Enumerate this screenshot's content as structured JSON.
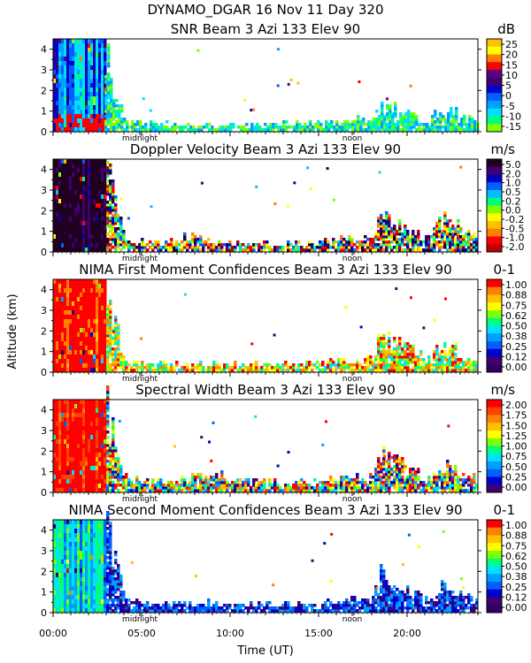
{
  "figure": {
    "title": "DYNAMO_DGAR  16 Nov 11 Day 320",
    "xlabel": "Time (UT)",
    "ylabel": "Altitude (km)",
    "midnight_label": "midnight",
    "noon_label": "noon"
  },
  "chart_data": [
    {
      "type": "heatmap",
      "title": "SNR Beam 3 Azi 133 Elev 90",
      "unit": "dB",
      "ylim": [
        0,
        4.5
      ],
      "xlim": [
        0,
        24
      ],
      "yticks": [
        0,
        1,
        2,
        3,
        4
      ],
      "colorbar_ticks": [
        "25",
        "20",
        "15",
        "10",
        "5",
        "0",
        "-5",
        "-10",
        "-15"
      ],
      "colorbar_colors": [
        "#ffc000",
        "#ffff00",
        "#ff8000",
        "#ff0000",
        "#5a0080",
        "#400070",
        "#0000d0",
        "#0060ff",
        "#00a0ff",
        "#00e0ff",
        "#00ff80",
        "#80ff00"
      ],
      "early_block_end_hour": 2.9,
      "echo_top_profile": {
        "x": [
          0,
          3,
          4,
          6,
          9,
          12,
          15,
          18,
          18.5,
          21,
          22,
          24
        ],
        "y": [
          4.5,
          4.5,
          0.6,
          0.5,
          0.45,
          0.5,
          0.55,
          0.8,
          1.6,
          0.7,
          1.3,
          0.6
        ]
      }
    },
    {
      "type": "heatmap",
      "title": "Doppler Velocity Beam 3 Azi 133 Elev 90",
      "unit": "m/s",
      "ylim": [
        0,
        4.5
      ],
      "xlim": [
        0,
        24
      ],
      "yticks": [
        0,
        1,
        2,
        3,
        4
      ],
      "colorbar_ticks": [
        "5.0",
        "2.0",
        "1.0",
        "0.5",
        "0.2",
        "0.0",
        "-0.2",
        "-0.5",
        "-1.0",
        "-2.0"
      ],
      "colorbar_colors": [
        "#200020",
        "#400070",
        "#0000c0",
        "#0060ff",
        "#00c0ff",
        "#00ff80",
        "#80ff00",
        "#ffff00",
        "#ffc000",
        "#ff8000",
        "#ff0000",
        "#c00000"
      ],
      "early_block_end_hour": 3.0,
      "echo_top_profile": {
        "x": [
          0,
          3,
          4,
          6,
          8,
          9,
          12,
          15,
          18,
          18.5,
          21,
          22,
          24
        ],
        "y": [
          4.5,
          4.5,
          0.7,
          0.6,
          0.9,
          0.5,
          0.55,
          0.6,
          0.9,
          2.0,
          0.8,
          1.8,
          0.7
        ]
      }
    },
    {
      "type": "heatmap",
      "title": "NIMA First Moment Confidences Beam 3 Azi 133 Elev 90",
      "unit": "0-1",
      "ylim": [
        0,
        4.5
      ],
      "xlim": [
        0,
        24
      ],
      "yticks": [
        0,
        1,
        2,
        3,
        4
      ],
      "colorbar_ticks": [
        "1.00",
        "0.88",
        "0.75",
        "0.62",
        "0.50",
        "0.38",
        "0.25",
        "0.12",
        "0.00"
      ],
      "colorbar_colors": [
        "#ff0000",
        "#ff8000",
        "#ffc000",
        "#ffff00",
        "#80ff00",
        "#00ff80",
        "#00e0ff",
        "#00a0ff",
        "#0060ff",
        "#0000d0",
        "#400070",
        "#300060"
      ],
      "early_block_end_hour": 3.0,
      "echo_top_profile": {
        "x": [
          0,
          3,
          4,
          6,
          9,
          12,
          15,
          18,
          18.5,
          21,
          22,
          24
        ],
        "y": [
          4.5,
          4.5,
          0.6,
          0.55,
          0.5,
          0.5,
          0.6,
          0.8,
          2.2,
          0.8,
          1.4,
          0.7
        ]
      }
    },
    {
      "type": "heatmap",
      "title": "Spectral Width Beam 3 Azi 133 Elev 90",
      "unit": "m/s",
      "ylim": [
        0,
        4.5
      ],
      "xlim": [
        0,
        24
      ],
      "yticks": [
        0,
        1,
        2,
        3,
        4
      ],
      "colorbar_ticks": [
        "2.00",
        "1.75",
        "1.50",
        "1.25",
        "1.00",
        "0.75",
        "0.50",
        "0.25",
        "0.00"
      ],
      "colorbar_colors": [
        "#ff0000",
        "#ff4000",
        "#ff8000",
        "#ffc000",
        "#ffff00",
        "#80ff00",
        "#00ff80",
        "#00e0ff",
        "#00a0ff",
        "#0060ff",
        "#0000d0",
        "#400070"
      ],
      "early_block_end_hour": 3.0,
      "echo_top_profile": {
        "x": [
          0,
          3,
          4,
          6,
          9,
          12,
          15,
          18,
          18.5,
          21,
          22,
          24
        ],
        "y": [
          4.5,
          4.5,
          0.9,
          0.6,
          1.0,
          0.6,
          0.7,
          0.9,
          2.2,
          0.8,
          1.6,
          0.7
        ]
      }
    },
    {
      "type": "heatmap",
      "title": "NIMA Second Moment Confidences Beam 3 Azi 133 Elev 90",
      "unit": "0-1",
      "ylim": [
        0,
        4.5
      ],
      "xlim": [
        0,
        24
      ],
      "yticks": [
        0,
        1,
        2,
        3,
        4
      ],
      "colorbar_ticks": [
        "1.00",
        "0.88",
        "0.75",
        "0.62",
        "0.50",
        "0.38",
        "0.25",
        "0.12",
        "0.00"
      ],
      "colorbar_colors": [
        "#ff0000",
        "#ff8000",
        "#ffc000",
        "#ffff00",
        "#80ff00",
        "#00ff80",
        "#00e0ff",
        "#00a0ff",
        "#0060ff",
        "#0000d0",
        "#400070",
        "#300060"
      ],
      "early_block_end_hour": 3.0,
      "echo_top_profile": {
        "x": [
          0,
          3,
          4,
          6,
          9,
          12,
          15,
          18,
          18.5,
          21,
          22,
          24
        ],
        "y": [
          4.5,
          4.5,
          0.8,
          0.55,
          0.6,
          0.5,
          0.6,
          0.8,
          2.2,
          0.7,
          1.5,
          0.6
        ]
      }
    }
  ],
  "xaxis": {
    "ticks": [
      "00:00",
      "05:00",
      "10:00",
      "15:00",
      "20:00"
    ],
    "tick_hours": [
      0,
      5,
      10,
      15,
      20
    ],
    "midnight_hour": 4.9,
    "noon_hour": 16.9
  }
}
